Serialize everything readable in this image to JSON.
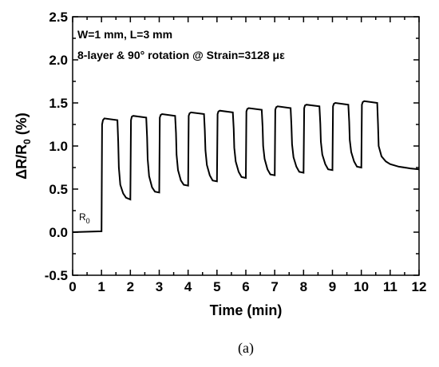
{
  "chart_data": {
    "type": "line",
    "xlabel": "Time (min)",
    "ylabel": "ΔR/R",
    "ylabel_sub": "0",
    "ylabel_unit": " (%)",
    "xlim": [
      0,
      12
    ],
    "ylim": [
      -0.5,
      2.5
    ],
    "xticks": [
      0,
      1,
      2,
      3,
      4,
      5,
      6,
      7,
      8,
      9,
      10,
      11,
      12
    ],
    "yticks": [
      -0.5,
      0.0,
      0.5,
      1.0,
      1.5,
      2.0,
      2.5
    ],
    "ytick_labels": [
      "-0.5",
      "0.0",
      "0.5",
      "1.0",
      "1.5",
      "2.0",
      "2.5"
    ],
    "grid": false,
    "annotations": [
      "W=1 mm, L=3 mm",
      "8-layer  &  90° rotation @ Strain=3128 με"
    ],
    "r0_label": "R",
    "r0_sub": "0",
    "caption": "(a)",
    "series": [
      {
        "color": "#000000",
        "x": [
          0,
          1.0,
          1.02,
          1.05,
          1.1,
          1.55,
          1.58,
          1.6,
          1.65,
          1.75,
          1.85,
          2.0,
          2.02,
          2.05,
          2.1,
          2.55,
          2.58,
          2.6,
          2.65,
          2.75,
          2.85,
          3.0,
          3.02,
          3.05,
          3.1,
          3.55,
          3.58,
          3.6,
          3.65,
          3.75,
          3.85,
          4.0,
          4.02,
          4.05,
          4.1,
          4.55,
          4.58,
          4.6,
          4.65,
          4.75,
          4.85,
          5.0,
          5.02,
          5.05,
          5.1,
          5.55,
          5.58,
          5.6,
          5.65,
          5.75,
          5.85,
          6.0,
          6.02,
          6.05,
          6.1,
          6.55,
          6.58,
          6.6,
          6.65,
          6.75,
          6.85,
          7.0,
          7.02,
          7.05,
          7.1,
          7.55,
          7.58,
          7.6,
          7.65,
          7.75,
          7.85,
          8.0,
          8.02,
          8.05,
          8.1,
          8.55,
          8.58,
          8.6,
          8.65,
          8.75,
          8.85,
          9.0,
          9.02,
          9.05,
          9.1,
          9.55,
          9.58,
          9.6,
          9.65,
          9.75,
          9.85,
          10.0,
          10.02,
          10.05,
          10.1,
          10.55,
          10.58,
          10.6,
          10.7,
          10.85,
          11.0,
          11.3,
          11.7,
          12.0
        ],
        "y": [
          0.0,
          0.01,
          1.25,
          1.3,
          1.32,
          1.3,
          1.05,
          0.75,
          0.55,
          0.45,
          0.4,
          0.38,
          1.3,
          1.34,
          1.35,
          1.33,
          1.1,
          0.85,
          0.65,
          0.52,
          0.47,
          0.46,
          1.33,
          1.36,
          1.37,
          1.35,
          1.15,
          0.9,
          0.72,
          0.6,
          0.55,
          0.54,
          1.35,
          1.38,
          1.39,
          1.37,
          1.18,
          0.95,
          0.78,
          0.66,
          0.6,
          0.59,
          1.37,
          1.4,
          1.41,
          1.39,
          1.2,
          0.98,
          0.82,
          0.7,
          0.64,
          0.63,
          1.4,
          1.43,
          1.44,
          1.42,
          1.22,
          1.0,
          0.85,
          0.73,
          0.67,
          0.66,
          1.42,
          1.45,
          1.46,
          1.44,
          1.24,
          1.02,
          0.87,
          0.76,
          0.7,
          0.69,
          1.44,
          1.47,
          1.48,
          1.46,
          1.26,
          1.05,
          0.9,
          0.79,
          0.73,
          0.72,
          1.46,
          1.49,
          1.5,
          1.48,
          1.28,
          1.07,
          0.93,
          0.82,
          0.76,
          0.75,
          1.48,
          1.51,
          1.52,
          1.5,
          1.25,
          1.0,
          0.88,
          0.82,
          0.79,
          0.76,
          0.74,
          0.73
        ]
      }
    ]
  }
}
